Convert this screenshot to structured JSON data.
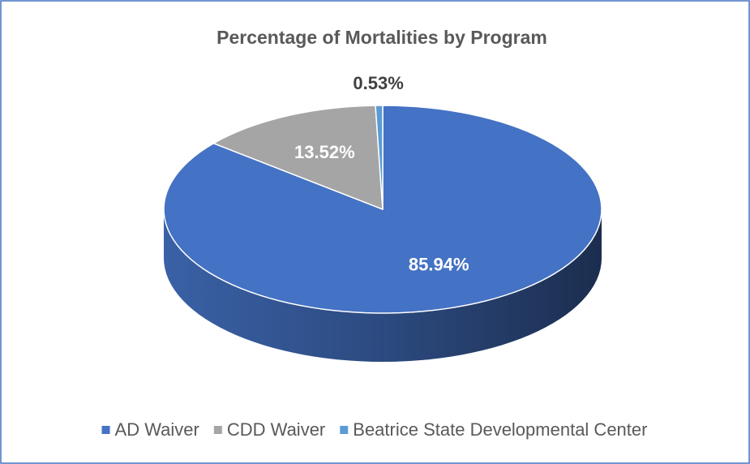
{
  "chart_data": {
    "type": "pie",
    "title": "Percentage of Mortalities by Program",
    "categories": [
      "AD Waiver",
      "CDD Waiver",
      "Beatrice State Developmental Center"
    ],
    "values": [
      85.94,
      13.52,
      0.53
    ],
    "value_labels": [
      "85.94%",
      "13.52%",
      "0.53%"
    ],
    "colors": [
      "#4472c4",
      "#a5a5a5",
      "#5b9bd5"
    ],
    "legend": "bottom"
  }
}
